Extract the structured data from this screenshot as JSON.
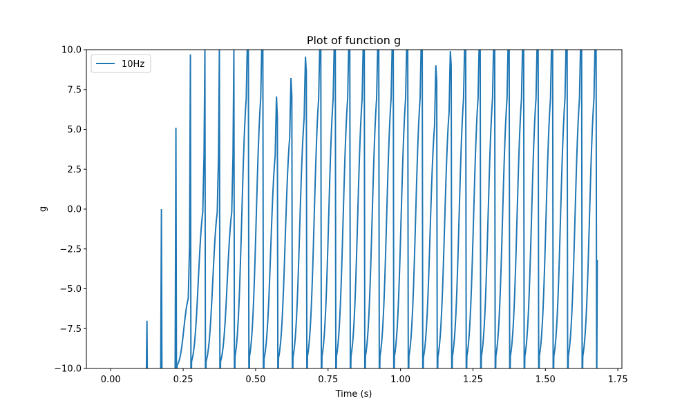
{
  "chart_data": {
    "type": "line",
    "title": "Plot of function g",
    "xlabel": "Time (s)",
    "ylabel": "g",
    "xlim": [
      -0.084,
      1.764
    ],
    "ylim": [
      -10.0,
      10.0
    ],
    "xticks": [
      "0.00",
      "0.25",
      "0.50",
      "0.75",
      "1.00",
      "1.25",
      "1.50",
      "1.75"
    ],
    "xtick_values": [
      0.0,
      0.25,
      0.5,
      0.75,
      1.0,
      1.25,
      1.5,
      1.75
    ],
    "yticks": [
      "−10.0",
      "−7.5",
      "−5.0",
      "−2.5",
      "0.0",
      "2.5",
      "5.0",
      "7.5",
      "10.0"
    ],
    "ytick_values": [
      -10.0,
      -7.5,
      -5.0,
      -2.5,
      0.0,
      2.5,
      5.0,
      7.5,
      10.0
    ],
    "grid": false,
    "legend_position": "top-left",
    "series": [
      {
        "name": "10Hz",
        "color": "#1f77b4",
        "spike_times": [
          0.125,
          0.175,
          0.225,
          0.275,
          0.325,
          0.375,
          0.425,
          0.475,
          0.525,
          0.575,
          0.625,
          0.675,
          0.725,
          0.775,
          0.825,
          0.875,
          0.925,
          0.975,
          1.025,
          1.075,
          1.125,
          1.175,
          1.225,
          1.275,
          1.325,
          1.375,
          1.425,
          1.475,
          1.525,
          1.575,
          1.625,
          1.675
        ],
        "spike_peaks": [
          -7.0,
          0.0,
          5.1,
          9.7,
          10.0,
          10.0,
          10.0,
          10.0,
          10.0,
          5.8,
          7.1,
          8.6,
          10.0,
          10.0,
          10.0,
          10.0,
          10.0,
          10.0,
          10.0,
          10.0,
          8.0,
          9.0,
          10.0,
          10.0,
          10.0,
          10.0,
          10.0,
          10.0,
          10.0,
          10.0,
          10.0,
          10.0
        ],
        "end_value": -3.2
      }
    ]
  }
}
